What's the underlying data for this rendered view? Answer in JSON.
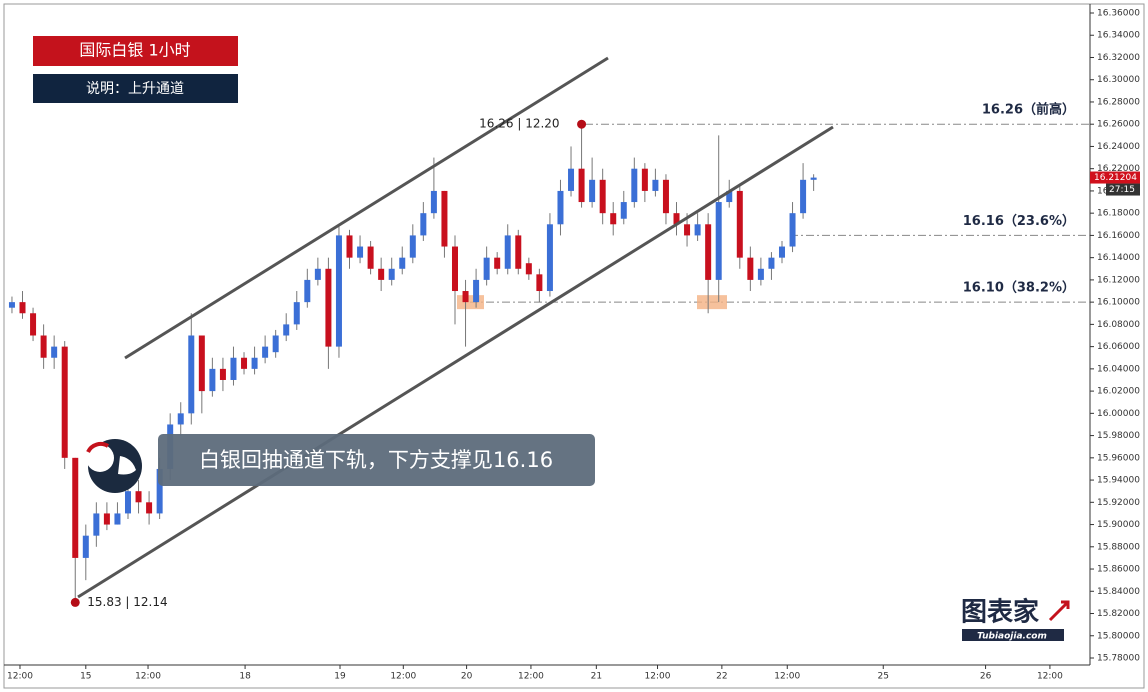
{
  "chart_data": {
    "type": "candlestick",
    "title": "国际白银  1小时",
    "subtitle": "说明：上升通道",
    "annotation": "白银回抽通道下轨，下方支撑见16.16",
    "logo": "图表家",
    "logo_sub": "Tubiaojia.com",
    "up_color": "#3b6fd6",
    "down_color": "#c8101e",
    "candles": {
      "open": [
        16.095,
        16.1,
        16.09,
        16.07,
        16.05,
        16.06,
        15.96,
        15.87,
        15.89,
        15.91,
        15.9,
        15.91,
        15.93,
        15.92,
        15.91,
        15.95,
        15.99,
        16.0,
        16.07,
        16.02,
        16.04,
        16.03,
        16.05,
        16.04,
        16.05,
        16.055,
        16.07,
        16.08,
        16.1,
        16.12,
        16.13,
        16.06,
        16.16,
        16.14,
        16.15,
        16.13,
        16.12,
        16.13,
        16.14,
        16.16,
        16.18,
        16.2,
        16.15,
        16.11,
        16.1,
        16.12,
        16.14,
        16.13,
        16.16,
        16.135,
        16.125,
        16.11,
        16.17,
        16.2,
        16.22,
        16.19,
        16.21,
        16.18,
        16.175,
        16.19,
        16.22,
        16.2,
        16.21,
        16.18,
        16.17,
        16.16,
        16.17,
        16.12,
        16.19,
        16.2,
        16.14,
        16.12,
        16.13,
        16.14,
        16.15,
        16.18,
        16.21
      ],
      "high": [
        16.105,
        16.11,
        16.095,
        16.08,
        16.07,
        16.065,
        15.96,
        15.9,
        15.92,
        15.92,
        15.92,
        15.94,
        15.94,
        15.93,
        15.96,
        16.0,
        16.01,
        16.09,
        16.07,
        16.05,
        16.05,
        16.06,
        16.055,
        16.06,
        16.07,
        16.075,
        16.09,
        16.11,
        16.13,
        16.14,
        16.14,
        16.17,
        16.165,
        16.16,
        16.155,
        16.14,
        16.14,
        16.15,
        16.17,
        16.19,
        16.23,
        16.2,
        16.16,
        16.12,
        16.13,
        16.15,
        16.145,
        16.17,
        16.165,
        16.14,
        16.13,
        16.18,
        16.21,
        16.24,
        16.26,
        16.23,
        16.22,
        16.19,
        16.2,
        16.23,
        16.225,
        16.22,
        16.215,
        16.19,
        16.18,
        16.18,
        16.18,
        16.25,
        16.21,
        16.205,
        16.15,
        16.14,
        16.145,
        16.155,
        16.19,
        16.225,
        16.215
      ],
      "low": [
        16.09,
        16.085,
        16.065,
        16.04,
        16.04,
        15.95,
        15.83,
        15.85,
        15.88,
        15.895,
        15.9,
        15.905,
        15.91,
        15.9,
        15.905,
        15.94,
        15.98,
        15.99,
        16.0,
        16.015,
        16.02,
        16.025,
        16.035,
        16.035,
        16.045,
        16.05,
        16.065,
        16.075,
        16.095,
        16.115,
        16.04,
        16.05,
        16.13,
        16.135,
        16.125,
        16.11,
        16.115,
        16.125,
        16.135,
        16.155,
        16.175,
        16.14,
        16.08,
        16.06,
        16.095,
        16.115,
        16.125,
        16.125,
        16.125,
        16.12,
        16.1,
        16.105,
        16.16,
        16.195,
        16.185,
        16.185,
        16.17,
        16.16,
        16.17,
        16.185,
        16.19,
        16.195,
        16.17,
        16.16,
        16.15,
        16.155,
        16.09,
        16.1,
        16.185,
        16.13,
        16.11,
        16.115,
        16.12,
        16.135,
        16.145,
        16.175,
        16.2
      ],
      "close": [
        16.1,
        16.09,
        16.07,
        16.05,
        16.06,
        15.96,
        15.87,
        15.89,
        15.91,
        15.9,
        15.91,
        15.93,
        15.92,
        15.91,
        15.95,
        15.99,
        16.0,
        16.07,
        16.02,
        16.04,
        16.03,
        16.05,
        16.04,
        16.05,
        16.06,
        16.07,
        16.08,
        16.1,
        16.12,
        16.13,
        16.06,
        16.16,
        16.14,
        16.15,
        16.13,
        16.12,
        16.13,
        16.14,
        16.16,
        16.18,
        16.2,
        16.15,
        16.11,
        16.1,
        16.12,
        16.14,
        16.13,
        16.16,
        16.13,
        16.125,
        16.11,
        16.17,
        16.2,
        16.22,
        16.19,
        16.21,
        16.18,
        16.17,
        16.19,
        16.22,
        16.2,
        16.21,
        16.18,
        16.17,
        16.16,
        16.17,
        16.12,
        16.19,
        16.2,
        16.14,
        16.12,
        16.13,
        16.14,
        16.15,
        16.18,
        16.21,
        16.212
      ]
    },
    "levels": [
      {
        "value": 16.26,
        "label": "16.26（前高）"
      },
      {
        "value": 16.16,
        "label": "16.16（23.6%）"
      },
      {
        "value": 16.1,
        "label": "16.10（38.2%）"
      }
    ],
    "points": [
      {
        "index": 54,
        "value": 16.26,
        "label": "16.26 | 12.20"
      },
      {
        "index": 6,
        "value": 15.83,
        "label": "15.83 | 12.14"
      }
    ],
    "last_price": {
      "value": 16.21204,
      "label": "16.21204",
      "timer": "27:15"
    },
    "ylim": [
      15.78,
      16.36
    ],
    "yticks": [
      {
        "value": 16.36,
        "label": "16.36000"
      },
      {
        "value": 16.34,
        "label": "16.34000"
      },
      {
        "value": 16.32,
        "label": "16.32000"
      },
      {
        "value": 16.3,
        "label": "16.30000"
      },
      {
        "value": 16.28,
        "label": "16.28000"
      },
      {
        "value": 16.26,
        "label": "16.26000"
      },
      {
        "value": 16.24,
        "label": "16.24000"
      },
      {
        "value": 16.22,
        "label": "16.22000"
      },
      {
        "value": 16.2,
        "label": "16.20000"
      },
      {
        "value": 16.18,
        "label": "16.18000"
      },
      {
        "value": 16.16,
        "label": "16.16000"
      },
      {
        "value": 16.14,
        "label": "16.14000"
      },
      {
        "value": 16.12,
        "label": "16.12000"
      },
      {
        "value": 16.1,
        "label": "16.10000"
      },
      {
        "value": 16.08,
        "label": "16.08000"
      },
      {
        "value": 16.06,
        "label": "16.06000"
      },
      {
        "value": 16.04,
        "label": "16.04000"
      },
      {
        "value": 16.02,
        "label": "16.02000"
      },
      {
        "value": 16.0,
        "label": "16.00000"
      },
      {
        "value": 15.98,
        "label": "15.98000"
      },
      {
        "value": 15.96,
        "label": "15.96000"
      },
      {
        "value": 15.94,
        "label": "15.94000"
      },
      {
        "value": 15.92,
        "label": "15.92000"
      },
      {
        "value": 15.9,
        "label": "15.90000"
      },
      {
        "value": 15.88,
        "label": "15.88000"
      },
      {
        "value": 15.86,
        "label": "15.86000"
      },
      {
        "value": 15.84,
        "label": "15.84000"
      },
      {
        "value": 15.82,
        "label": "15.82000"
      },
      {
        "value": 15.8,
        "label": "15.80000"
      },
      {
        "value": 15.78,
        "label": "15.78000"
      }
    ],
    "xlim": [
      -0.66,
      102.2
    ],
    "xticks": [
      {
        "value": 0.76,
        "label": "12:00"
      },
      {
        "value": 7,
        "label": "15"
      },
      {
        "value": 12.9,
        "label": "12:00"
      },
      {
        "value": 22.1,
        "label": "18"
      },
      {
        "value": 31.1,
        "label": "19"
      },
      {
        "value": 37.1,
        "label": "12:00"
      },
      {
        "value": 43.1,
        "label": "20"
      },
      {
        "value": 49.2,
        "label": "12:00"
      },
      {
        "value": 55.4,
        "label": "21"
      },
      {
        "value": 61.2,
        "label": "12:00"
      },
      {
        "value": 67.3,
        "label": "22"
      },
      {
        "value": 73.5,
        "label": "12:00"
      },
      {
        "value": 82.6,
        "label": "25"
      },
      {
        "value": 92.3,
        "label": "26"
      },
      {
        "value": 98.4,
        "label": "12:00"
      }
    ]
  }
}
